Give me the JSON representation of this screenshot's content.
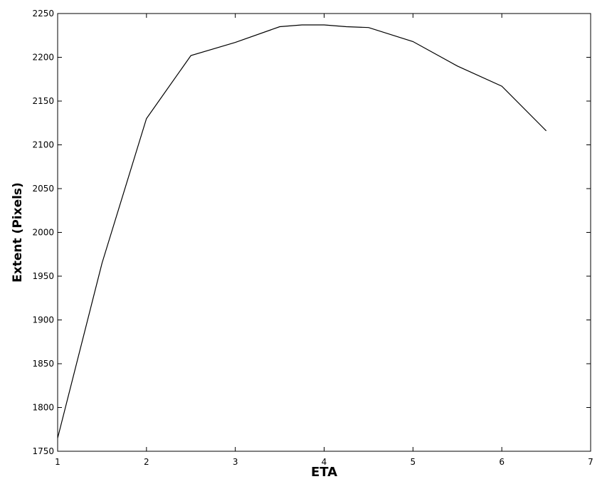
{
  "chart_data": {
    "type": "line",
    "title": "",
    "xlabel": "ETA",
    "ylabel": "Extent  (Pixels)",
    "xlim": [
      1,
      7
    ],
    "ylim": [
      1750,
      2250
    ],
    "xticks": [
      1,
      2,
      3,
      4,
      5,
      6,
      7
    ],
    "yticks": [
      1750,
      1800,
      1850,
      1900,
      1950,
      2000,
      2050,
      2100,
      2150,
      2200,
      2250
    ],
    "grid": false,
    "legend": "none",
    "line_color": "#000000",
    "series": [
      {
        "x": [
          1,
          1.5,
          2,
          2.5,
          3,
          3.5,
          3.75,
          4,
          4.25,
          4.5,
          5,
          5.5,
          6,
          6.5
        ],
        "y": [
          1765,
          1965,
          2130,
          2202,
          2217,
          2235,
          2237,
          2237,
          2235,
          2234,
          2218,
          2190,
          2167,
          2116
        ]
      }
    ]
  }
}
